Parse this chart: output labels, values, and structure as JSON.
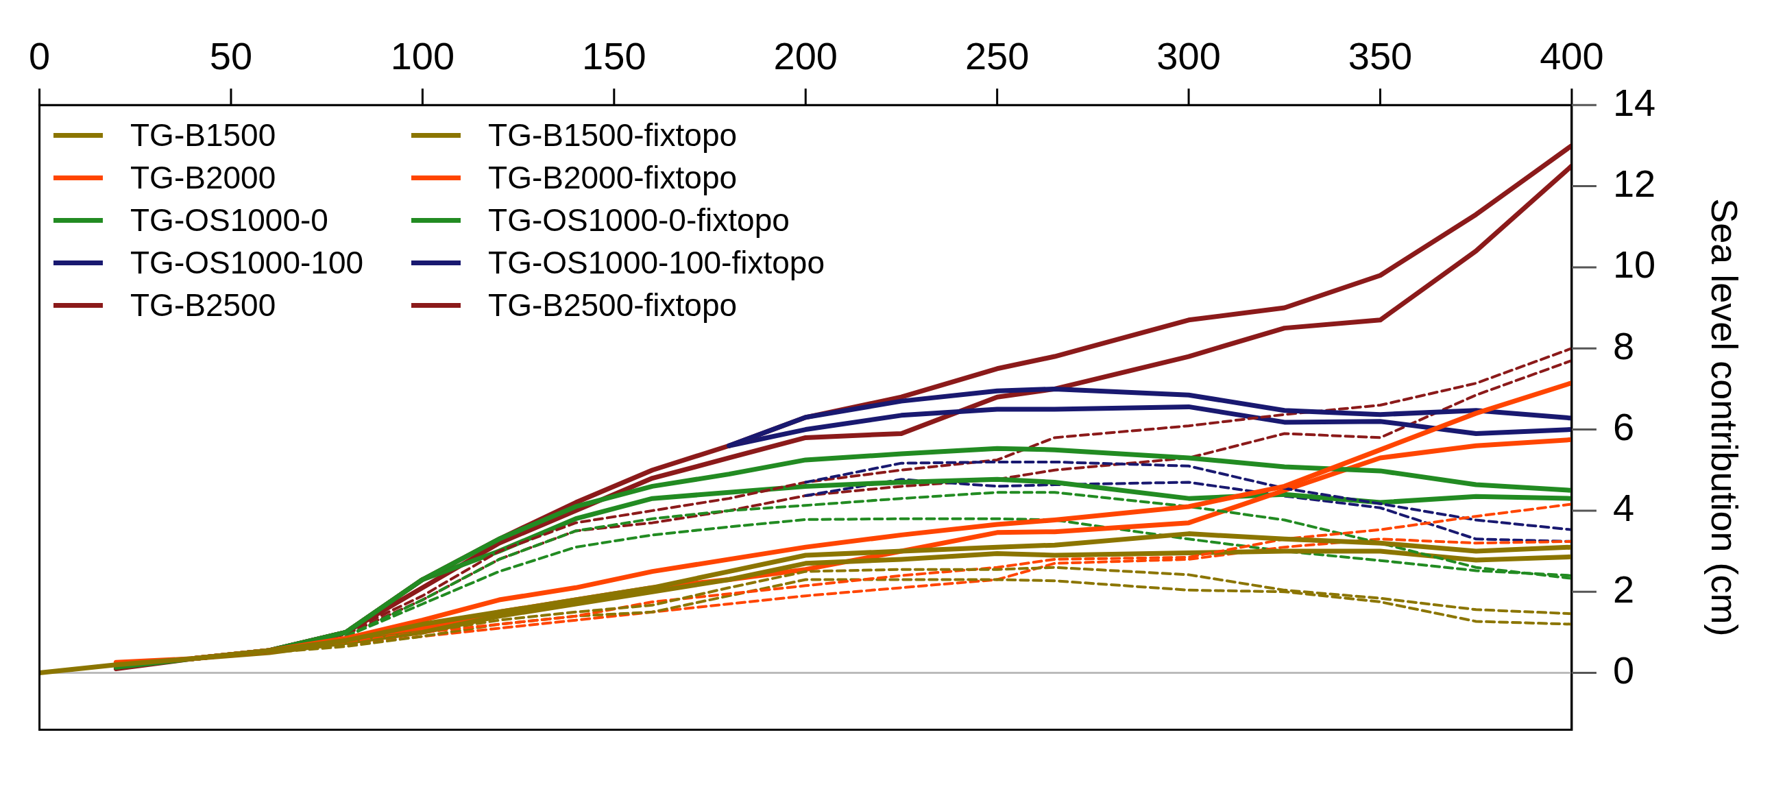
{
  "chart_data": {
    "type": "line",
    "ylabel": "Sea level contribution (cm)",
    "x": [
      0,
      20,
      40,
      60,
      80,
      100,
      120,
      140,
      160,
      180,
      200,
      225,
      250,
      265,
      300,
      325,
      350,
      375,
      400
    ],
    "xlim": [
      0,
      400
    ],
    "xticks": [
      0,
      50,
      100,
      150,
      200,
      250,
      300,
      350,
      400
    ],
    "ylim": [
      -1.4,
      14
    ],
    "yticks": [
      0,
      2,
      4,
      6,
      8,
      10,
      12,
      14
    ],
    "legend": "top left",
    "ref_lines": [
      {
        "axis": "y",
        "value": 0,
        "color": "#bbbbbb"
      }
    ],
    "series": [
      {
        "name": "TG-B1500",
        "color": "#8b7500",
        "line_style": "solid",
        "values": [
          0,
          0.2,
          0.35,
          0.55,
          0.8,
          1.2,
          1.5,
          1.8,
          2.1,
          2.5,
          2.9,
          3.0,
          3.1,
          3.15,
          3.43,
          3.3,
          3.2,
          3.0,
          3.1
        ]
      },
      {
        "name": "TG-B2000",
        "color": "#ff4500",
        "line_style": "solid",
        "values": [
          null,
          0.26,
          0.35,
          0.55,
          0.85,
          1.3,
          1.8,
          2.1,
          2.5,
          2.8,
          3.1,
          3.4,
          3.66,
          3.77,
          4.1,
          4.6,
          5.5,
          6.4,
          7.15
        ]
      },
      {
        "name": "TG-OS1000-0",
        "color": "#228b22",
        "line_style": "solid",
        "values": [
          null,
          0.14,
          0.35,
          0.55,
          1.0,
          2.3,
          3.3,
          4.1,
          4.6,
          4.9,
          5.25,
          5.4,
          5.53,
          5.5,
          5.3,
          5.08,
          4.98,
          4.64,
          4.5
        ]
      },
      {
        "name": "TG-OS1000-100",
        "color": "#191970",
        "line_style": "solid",
        "values": [
          null,
          null,
          null,
          null,
          null,
          null,
          null,
          null,
          null,
          5.6,
          6.3,
          6.7,
          6.95,
          7.0,
          6.85,
          6.47,
          6.37,
          6.47,
          6.28
        ]
      },
      {
        "name": "TG-B2500",
        "color": "#8b1a1a",
        "line_style": "solid",
        "values": [
          null,
          0.1,
          0.35,
          0.55,
          1.0,
          2.3,
          3.3,
          4.2,
          5.0,
          5.6,
          6.3,
          6.8,
          7.5,
          7.8,
          8.7,
          9.0,
          9.8,
          11.3,
          13.0
        ]
      },
      {
        "name": "TG-B1500-fixtopo",
        "color": "#8b7500",
        "line_style": "dashed",
        "values": [
          null,
          null,
          0.35,
          0.5,
          0.7,
          1.0,
          1.3,
          1.5,
          1.67,
          2.1,
          2.5,
          2.55,
          2.55,
          2.6,
          2.42,
          2.04,
          1.84,
          1.56,
          1.46
        ]
      },
      {
        "name": "TG-B2000-fixtopo",
        "color": "#ff4500",
        "line_style": "dashed",
        "values": [
          null,
          null,
          0.35,
          0.5,
          0.75,
          1.0,
          1.2,
          1.4,
          1.75,
          1.95,
          2.15,
          2.4,
          2.6,
          2.8,
          2.85,
          3.3,
          3.53,
          3.86,
          4.16
        ]
      },
      {
        "name": "TG-OS1000-0-fixtopo",
        "color": "#228b22",
        "line_style": "dashed",
        "values": [
          null,
          null,
          null,
          null,
          0.9,
          1.8,
          2.8,
          3.5,
          3.8,
          4.0,
          4.13,
          4.3,
          4.45,
          4.45,
          4.1,
          3.77,
          3.2,
          2.6,
          2.33
        ]
      },
      {
        "name": "TG-OS1000-100-fixtopo",
        "color": "#191970",
        "line_style": "dashed",
        "values": [
          null,
          null,
          null,
          null,
          null,
          null,
          null,
          null,
          null,
          null,
          4.7,
          5.17,
          5.2,
          5.2,
          5.1,
          4.55,
          4.17,
          3.77,
          3.53
        ]
      },
      {
        "name": "TG-B2500-fixtopo",
        "color": "#8b1a1a",
        "line_style": "dashed",
        "values": [
          null,
          null,
          0.35,
          0.55,
          1.0,
          1.9,
          3.0,
          3.7,
          4.0,
          4.3,
          4.7,
          5.0,
          5.25,
          5.8,
          6.09,
          6.37,
          6.6,
          7.14,
          8.0
        ]
      },
      {
        "color": "#8b7500",
        "line_style": "solid",
        "values": [
          null,
          null,
          0.35,
          0.5,
          0.75,
          1.0,
          1.4,
          1.7,
          2.0,
          2.3,
          2.7,
          2.8,
          2.94,
          2.9,
          2.96,
          3.0,
          3.0,
          2.78,
          2.86
        ]
      },
      {
        "color": "#ff4500",
        "line_style": "solid",
        "values": [
          null,
          null,
          0.35,
          0.55,
          0.8,
          1.1,
          1.5,
          1.8,
          2.1,
          2.3,
          2.55,
          3.0,
          3.46,
          3.48,
          3.7,
          4.5,
          5.3,
          5.6,
          5.75
        ]
      },
      {
        "color": "#228b22",
        "line_style": "solid",
        "values": [
          null,
          null,
          0.35,
          0.55,
          1.0,
          2.3,
          3.0,
          3.8,
          4.3,
          4.45,
          4.6,
          4.7,
          4.77,
          4.7,
          4.3,
          4.4,
          4.2,
          4.35,
          4.3
        ]
      },
      {
        "color": "#191970",
        "line_style": "solid",
        "values": [
          null,
          null,
          null,
          null,
          null,
          null,
          null,
          null,
          null,
          5.6,
          6.0,
          6.35,
          6.5,
          6.5,
          6.56,
          6.18,
          6.2,
          5.9,
          6.0
        ]
      },
      {
        "color": "#8b1a1a",
        "line_style": "solid",
        "values": [
          null,
          null,
          0.35,
          0.55,
          1.0,
          2.1,
          3.2,
          4.0,
          4.8,
          5.3,
          5.8,
          5.9,
          6.8,
          7.0,
          7.8,
          8.5,
          8.7,
          10.4,
          12.5
        ]
      },
      {
        "color": "#8b7500",
        "line_style": "dashed",
        "values": [
          null,
          null,
          0.35,
          0.5,
          0.65,
          0.9,
          1.2,
          1.4,
          1.5,
          1.9,
          2.3,
          2.3,
          2.3,
          2.27,
          2.04,
          2.0,
          1.75,
          1.27,
          1.2
        ]
      },
      {
        "color": "#ff4500",
        "line_style": "dashed",
        "values": [
          null,
          null,
          0.35,
          0.5,
          0.7,
          0.9,
          1.1,
          1.3,
          1.5,
          1.7,
          1.9,
          2.1,
          2.3,
          2.7,
          2.8,
          3.1,
          3.3,
          3.2,
          3.24
        ]
      },
      {
        "color": "#228b22",
        "line_style": "dashed",
        "values": [
          null,
          null,
          null,
          null,
          0.9,
          1.7,
          2.5,
          3.1,
          3.4,
          3.6,
          3.78,
          3.8,
          3.8,
          3.77,
          3.3,
          3.0,
          2.77,
          2.52,
          2.4
        ]
      },
      {
        "color": "#191970",
        "line_style": "dashed",
        "values": [
          null,
          null,
          null,
          null,
          null,
          null,
          null,
          null,
          null,
          null,
          4.37,
          4.77,
          4.6,
          4.64,
          4.7,
          4.36,
          4.07,
          3.3,
          3.24
        ]
      },
      {
        "color": "#8b1a1a",
        "line_style": "dashed",
        "values": [
          null,
          null,
          0.35,
          0.55,
          0.95,
          1.8,
          2.8,
          3.5,
          3.7,
          4.0,
          4.37,
          4.6,
          4.77,
          5.0,
          5.3,
          5.9,
          5.8,
          6.85,
          7.7
        ]
      }
    ]
  }
}
